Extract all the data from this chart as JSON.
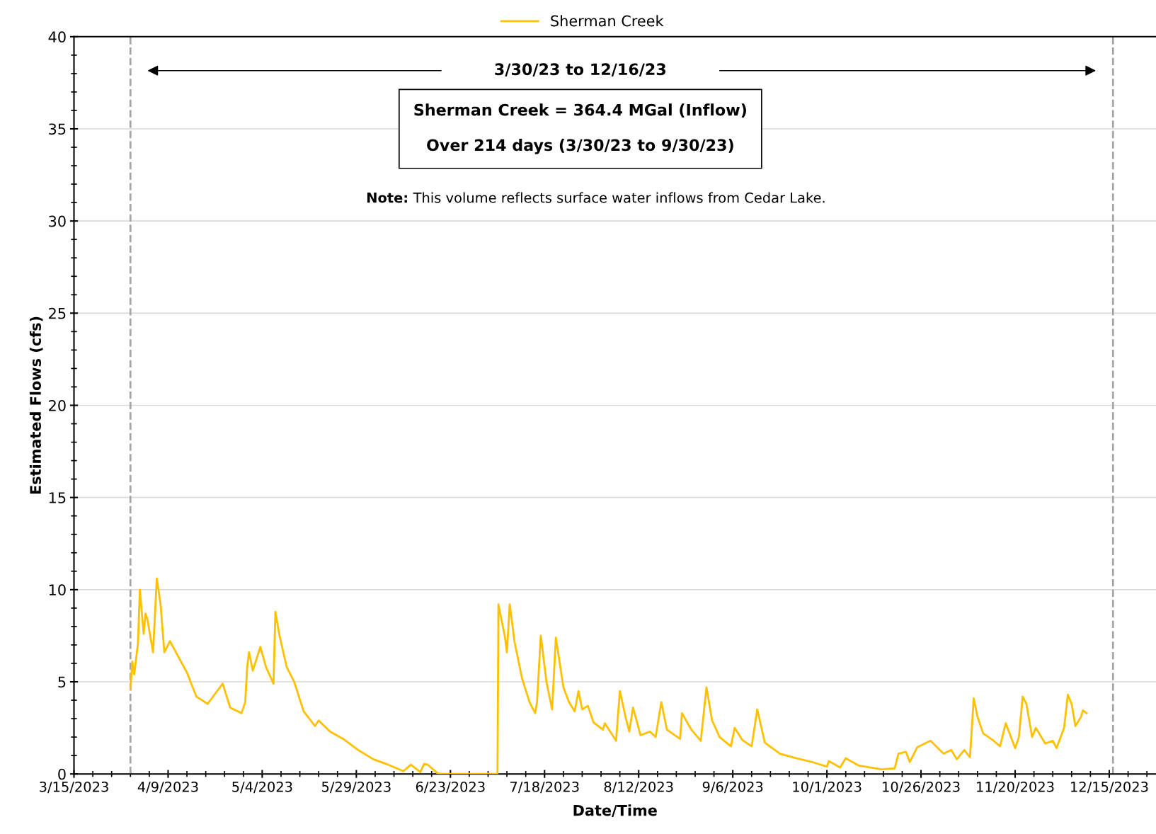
{
  "chart_data": {
    "type": "line",
    "xlabel": "Date/Time",
    "ylabel": "Estimated Flows (cfs)",
    "xlim": [
      "2023-03-15",
      "2023-12-27T10:00"
    ],
    "xticks": [
      {
        "value": "2023-03-15",
        "label": "3/15/2023"
      },
      {
        "value": "2023-04-09",
        "label": "4/9/2023"
      },
      {
        "value": "2023-05-04",
        "label": "5/4/2023"
      },
      {
        "value": "2023-05-29",
        "label": "5/29/2023"
      },
      {
        "value": "2023-06-23",
        "label": "6/23/2023"
      },
      {
        "value": "2023-07-18",
        "label": "7/18/2023"
      },
      {
        "value": "2023-08-12",
        "label": "8/12/2023"
      },
      {
        "value": "2023-09-06",
        "label": "9/6/2023"
      },
      {
        "value": "2023-10-01",
        "label": "10/1/2023"
      },
      {
        "value": "2023-10-26",
        "label": "10/26/2023"
      },
      {
        "value": "2023-11-20",
        "label": "11/20/2023"
      },
      {
        "value": "2023-12-15",
        "label": "12/15/2023"
      }
    ],
    "ylim": [
      0,
      40
    ],
    "yticks": [
      0,
      5,
      10,
      15,
      20,
      25,
      30,
      35,
      40
    ],
    "grid": "y",
    "legend": "top",
    "marker": "none",
    "line_style": "solid",
    "ref_lines": [
      {
        "axis": "x",
        "value": "2023-03-30",
        "color": "#a6a6a6",
        "line_style": "dashed"
      },
      {
        "axis": "x",
        "value": "2023-12-16",
        "color": "#a6a6a6",
        "line_style": "dashed"
      }
    ],
    "annotations": [
      "3/30/23 to 12/16/23",
      "Sherman Creek = 364.4 MGal (Inflow)\n\nOver 214 days (3/30/23 to 9/30/23)",
      "Note: This volume reflects surface water inflows from Cedar Lake."
    ],
    "series": [
      {
        "name": "Sherman Creek",
        "color": "#ffc000",
        "x": [
          "2023-03-30",
          "2023-03-30T12:00",
          "2023-03-31",
          "2023-04-01",
          "2023-04-01T12:00",
          "2023-04-02T12:00",
          "2023-04-03",
          "2023-04-03T12:00",
          "2023-04-05",
          "2023-04-06",
          "2023-04-07",
          "2023-04-08",
          "2023-04-09T12:00",
          "2023-04-14",
          "2023-04-16T12:00",
          "2023-04-19T12:00",
          "2023-04-23T12:00",
          "2023-04-25T12:00",
          "2023-04-28T12:00",
          "2023-04-29T12:00",
          "2023-04-30",
          "2023-04-30T12:00",
          "2023-05-01T12:00",
          "2023-05-03T12:00",
          "2023-05-05",
          "2023-05-07",
          "2023-05-07T12:00",
          "2023-05-08T12:00",
          "2023-05-10T12:00",
          "2023-05-12T12:00",
          "2023-05-15",
          "2023-05-18",
          "2023-05-19",
          "2023-05-22",
          "2023-05-25T12:00",
          "2023-05-29T12:00",
          "2023-06-02T12:00",
          "2023-06-06T12:00",
          "2023-06-10T12:00",
          "2023-06-12T12:00",
          "2023-06-15",
          "2023-06-16",
          "2023-06-17",
          "2023-06-19T12:00",
          "2023-06-20T12:00",
          "2023-07-05T12:00",
          "2023-07-05T18:00",
          "2023-07-07T12:00",
          "2023-07-08",
          "2023-07-08T18:00",
          "2023-07-10",
          "2023-07-12",
          "2023-07-14",
          "2023-07-15T12:00",
          "2023-07-16",
          "2023-07-17",
          "2023-07-18T12:00",
          "2023-07-20",
          "2023-07-21",
          "2023-07-23",
          "2023-07-24T12:00",
          "2023-07-26",
          "2023-07-27",
          "2023-07-28",
          "2023-07-29T12:00",
          "2023-07-31",
          "2023-08-02T12:00",
          "2023-08-03",
          "2023-08-06",
          "2023-08-07",
          "2023-08-08T12:00",
          "2023-08-09T12:00",
          "2023-08-10T12:00",
          "2023-08-12T12:00",
          "2023-08-15",
          "2023-08-16T12:00",
          "2023-08-18",
          "2023-08-19T12:00",
          "2023-08-23",
          "2023-08-23T12:00",
          "2023-08-26",
          "2023-08-28T12:00",
          "2023-08-30",
          "2023-08-31T12:00",
          "2023-09-02T12:00",
          "2023-09-05T12:00",
          "2023-09-06T12:00",
          "2023-09-08T12:00",
          "2023-09-11",
          "2023-09-12T12:00",
          "2023-09-14T12:00",
          "2023-09-18T12:00",
          "2023-09-23",
          "2023-09-27",
          "2023-10-01",
          "2023-10-01T12:00",
          "2023-10-04T12:00",
          "2023-10-06",
          "2023-10-09T12:00",
          "2023-10-15T12:00",
          "2023-10-19",
          "2023-10-20",
          "2023-10-22",
          "2023-10-23",
          "2023-10-25",
          "2023-10-28T12:00",
          "2023-11-01",
          "2023-11-03",
          "2023-11-04T12:00",
          "2023-11-06T12:00",
          "2023-11-08",
          "2023-11-09",
          "2023-11-10",
          "2023-11-11T12:00",
          "2023-11-14",
          "2023-11-16",
          "2023-11-17T12:00",
          "2023-11-20",
          "2023-11-21",
          "2023-11-22",
          "2023-11-23",
          "2023-11-24T12:00",
          "2023-11-25T12:00",
          "2023-11-28",
          "2023-11-30",
          "2023-12-01",
          "2023-12-03",
          "2023-12-04",
          "2023-12-05",
          "2023-12-06",
          "2023-12-07T12:00",
          "2023-12-08",
          "2023-12-09"
        ],
        "values": [
          4.6,
          6.1,
          5.4,
          7.1,
          10.0,
          7.6,
          8.7,
          8.4,
          6.6,
          10.6,
          9.2,
          6.6,
          7.2,
          5.5,
          4.2,
          3.8,
          4.9,
          3.6,
          3.3,
          3.9,
          5.8,
          6.6,
          5.6,
          6.9,
          5.8,
          4.9,
          8.8,
          7.6,
          5.8,
          5.0,
          3.4,
          2.6,
          2.9,
          2.3,
          1.9,
          1.3,
          0.8,
          0.5,
          0.15,
          0.5,
          0.1,
          0.55,
          0.5,
          0.05,
          0,
          0,
          9.2,
          7.4,
          6.6,
          9.2,
          7.2,
          5.2,
          3.9,
          3.3,
          3.9,
          7.5,
          5.0,
          3.5,
          7.4,
          4.7,
          3.9,
          3.4,
          4.5,
          3.5,
          3.7,
          2.8,
          2.4,
          2.75,
          1.8,
          4.5,
          3.1,
          2.3,
          3.6,
          2.1,
          2.3,
          2.0,
          3.9,
          2.4,
          1.9,
          3.3,
          2.4,
          1.8,
          4.7,
          2.9,
          2.0,
          1.5,
          2.5,
          1.85,
          1.5,
          3.5,
          1.7,
          1.1,
          0.85,
          0.65,
          0.4,
          0.7,
          0.35,
          0.85,
          0.45,
          0.25,
          0.3,
          1.1,
          1.2,
          0.65,
          1.45,
          1.8,
          1.1,
          1.3,
          0.8,
          1.3,
          0.9,
          4.1,
          3.1,
          2.2,
          1.85,
          1.5,
          2.75,
          1.4,
          2.0,
          4.2,
          3.8,
          2.0,
          2.5,
          1.65,
          1.8,
          1.4,
          2.5,
          4.3,
          3.8,
          2.6,
          3.1,
          3.45,
          3.3
        ]
      }
    ]
  }
}
